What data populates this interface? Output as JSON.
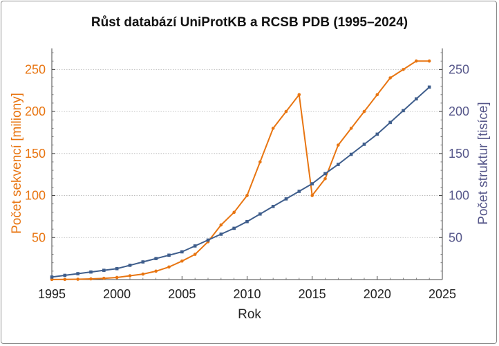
{
  "chart_data": {
    "type": "line",
    "title": "Růst databází UniProtKB a RCSB PDB (1995–2024)",
    "xlabel": "Rok",
    "ylabel_left": "Počet sekvencí [miliony]",
    "ylabel_right": "Počet struktur [tisíce]",
    "xlim": [
      1995,
      2025
    ],
    "ylim_left": [
      0,
      275
    ],
    "ylim_right": [
      0,
      275
    ],
    "x_ticks": [
      1995,
      2000,
      2005,
      2010,
      2015,
      2020,
      2025
    ],
    "y_ticks_left": [
      50,
      100,
      150,
      200,
      250
    ],
    "y_ticks_right": [
      50,
      100,
      150,
      200,
      250
    ],
    "grid": "horizontal-dotted",
    "colors": {
      "left_series": "#E87511",
      "right_series": "#3F5E8C",
      "left_axis": "#E87511",
      "right_axis": "#56578A"
    },
    "series": [
      {
        "axis": "left",
        "marker": "circle",
        "x": [
          1995,
          1996,
          1997,
          1998,
          1999,
          2000,
          2001,
          2002,
          2003,
          2004,
          2005,
          2006,
          2007,
          2008,
          2009,
          2010,
          2011,
          2012,
          2013,
          2014,
          2015,
          2016,
          2017,
          2018,
          2019,
          2020,
          2021,
          2022,
          2023,
          2024
        ],
        "y": [
          0.1,
          0.2,
          0.4,
          0.8,
          1.5,
          2.5,
          4.5,
          6.5,
          10,
          15,
          22,
          30,
          45,
          65,
          80,
          100,
          140,
          180,
          200,
          220,
          100,
          120,
          160,
          180,
          200,
          220,
          240,
          250,
          260,
          260
        ]
      },
      {
        "axis": "right",
        "marker": "square",
        "x": [
          1995,
          1996,
          1997,
          1998,
          1999,
          2000,
          2001,
          2002,
          2003,
          2004,
          2005,
          2006,
          2007,
          2008,
          2009,
          2010,
          2011,
          2012,
          2013,
          2014,
          2015,
          2016,
          2017,
          2018,
          2019,
          2020,
          2021,
          2022,
          2023,
          2024
        ],
        "y": [
          3,
          5,
          7,
          9,
          11,
          13,
          17,
          21,
          25,
          29,
          33,
          40,
          47,
          54,
          61,
          69,
          78,
          87,
          96,
          105,
          114,
          126,
          137,
          149,
          161,
          173,
          187,
          201,
          215,
          229
        ]
      }
    ]
  }
}
